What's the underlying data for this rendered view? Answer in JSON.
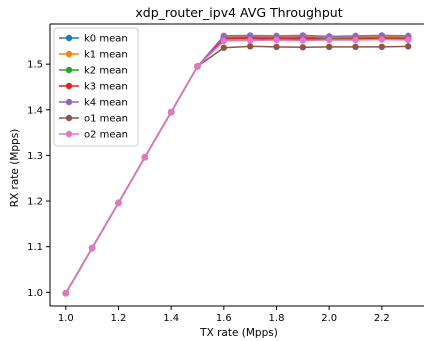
{
  "chart_data": {
    "type": "line",
    "title": "xdp_router_ipv4 AVG Throughput",
    "xlabel": "TX rate (Mpps)",
    "ylabel": "RX rate (Mpps)",
    "xlim": [
      0.94,
      2.36
    ],
    "ylim": [
      0.97,
      1.588
    ],
    "xticks": [
      "1.0",
      "1.2",
      "1.4",
      "1.6",
      "1.8",
      "2.0",
      "2.2"
    ],
    "xtick_values": [
      1.0,
      1.2,
      1.4,
      1.6,
      1.8,
      2.0,
      2.2
    ],
    "yticks": [
      "1.0",
      "1.1",
      "1.2",
      "1.3",
      "1.4",
      "1.5"
    ],
    "ytick_values": [
      1.0,
      1.1,
      1.2,
      1.3,
      1.4,
      1.5
    ],
    "grid": false,
    "legend_position": "upper-left",
    "x": [
      1.0,
      1.1,
      1.2,
      1.3,
      1.4,
      1.5,
      1.6,
      1.7,
      1.8,
      1.9,
      2.0,
      2.1,
      2.2,
      2.3
    ],
    "series": [
      {
        "name": "k0 mean",
        "color": "#1f77b4",
        "values": [
          0.998,
          1.097,
          1.196,
          1.296,
          1.395,
          1.495,
          1.56,
          1.561,
          1.56,
          1.561,
          1.558,
          1.559,
          1.56,
          1.559
        ]
      },
      {
        "name": "k1 mean",
        "color": "#ff7f0e",
        "values": [
          0.998,
          1.097,
          1.196,
          1.296,
          1.395,
          1.495,
          1.561,
          1.562,
          1.561,
          1.562,
          1.559,
          1.56,
          1.561,
          1.56
        ]
      },
      {
        "name": "k2 mean",
        "color": "#2ca02c",
        "values": [
          0.998,
          1.097,
          1.196,
          1.296,
          1.395,
          1.495,
          1.558,
          1.558,
          1.557,
          1.558,
          1.556,
          1.557,
          1.558,
          1.557
        ]
      },
      {
        "name": "k3 mean",
        "color": "#d62728",
        "values": [
          0.998,
          1.097,
          1.196,
          1.296,
          1.395,
          1.495,
          1.555,
          1.556,
          1.555,
          1.556,
          1.554,
          1.555,
          1.555,
          1.555
        ]
      },
      {
        "name": "k4 mean",
        "color": "#9467bd",
        "values": [
          0.998,
          1.097,
          1.196,
          1.296,
          1.395,
          1.495,
          1.562,
          1.563,
          1.562,
          1.563,
          1.561,
          1.562,
          1.563,
          1.562
        ]
      },
      {
        "name": "o1 mean",
        "color": "#8c564b",
        "values": [
          0.998,
          1.097,
          1.196,
          1.296,
          1.395,
          1.495,
          1.536,
          1.539,
          1.538,
          1.537,
          1.538,
          1.538,
          1.538,
          1.539
        ]
      },
      {
        "name": "o2 mean",
        "color": "#e377c2",
        "values": [
          0.998,
          1.097,
          1.196,
          1.296,
          1.395,
          1.495,
          1.551,
          1.552,
          1.553,
          1.552,
          1.553,
          1.553,
          1.554,
          1.553
        ]
      }
    ]
  }
}
